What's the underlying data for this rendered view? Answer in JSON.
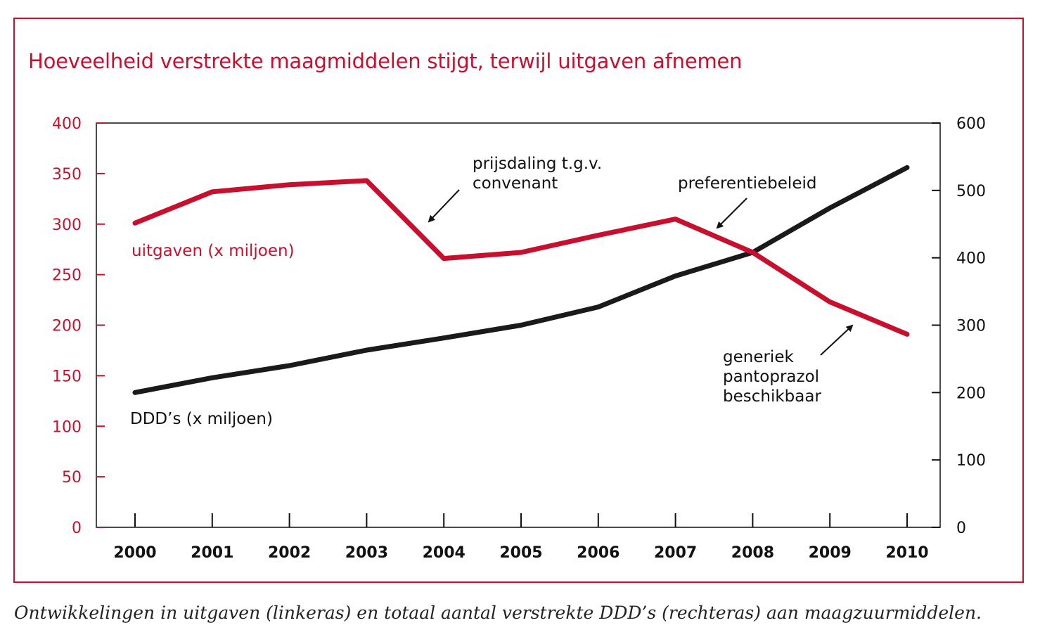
{
  "title": "Hoeveelheid verstrekte maagmiddelen stijgt, terwijl uitgaven afnemen",
  "caption": "Ontwikkelingen in uitgaven (linkeras) en totaal aantal verstrekte DDD’s (rechteras) aan maagzuurmiddelen.",
  "colors": {
    "accent": "#c8102e",
    "dark": "#1a1a1a"
  },
  "chart_data": {
    "type": "line",
    "x": [
      "2000",
      "2001",
      "2002",
      "2003",
      "2004",
      "2005",
      "2006",
      "2007",
      "2008",
      "2009",
      "2010"
    ],
    "ylim_left": [
      0,
      400
    ],
    "yticks_left": [
      0,
      50,
      100,
      150,
      200,
      250,
      300,
      350,
      400
    ],
    "ylim_right": [
      0,
      600
    ],
    "yticks_right": [
      0,
      100,
      200,
      300,
      400,
      500,
      600
    ],
    "grid": false,
    "series": [
      {
        "name": "uitgaven (x miljoen)",
        "axis": "left",
        "color": "#c8102e",
        "values": [
          301,
          332,
          339,
          343,
          266,
          272,
          289,
          305,
          272,
          223,
          191
        ]
      },
      {
        "name": "DDD’s (x miljoen)",
        "axis": "right",
        "color": "#1a1a1a",
        "values": [
          200,
          222,
          240,
          263,
          281,
          300,
          327,
          373,
          408,
          474,
          534
        ]
      }
    ],
    "annotations": [
      {
        "text": [
          "prijsdaling t.g.v.",
          "convenant"
        ],
        "x": "2003.8"
      },
      {
        "text": [
          "preferentiebeleid"
        ],
        "x": "2007.5"
      },
      {
        "text": [
          "generiek",
          "pantoprazol",
          "beschikbaar"
        ],
        "x": "2009.3"
      }
    ]
  }
}
